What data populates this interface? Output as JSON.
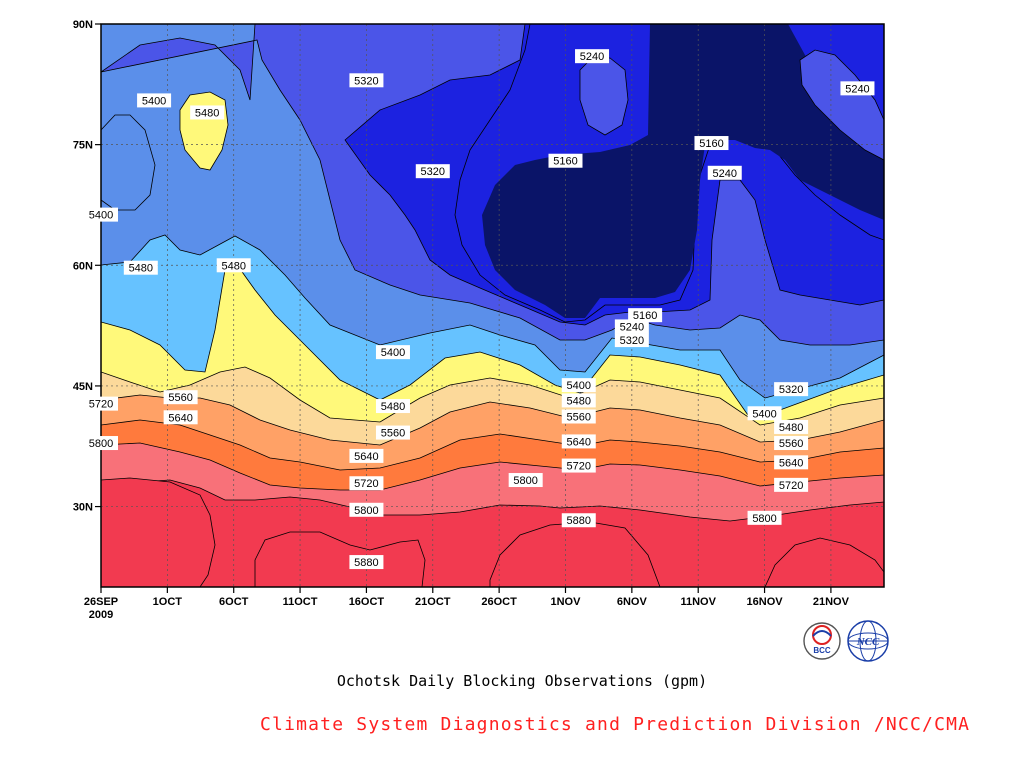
{
  "chart_data": {
    "type": "contour",
    "title": "Ochotsk Daily Blocking Observations (gpm)",
    "x_tick_labels": [
      "26SEP",
      "1OCT",
      "6OCT",
      "11OCT",
      "16OCT",
      "21OCT",
      "26OCT",
      "1NOV",
      "6NOV",
      "11NOV",
      "16NOV",
      "21NOV"
    ],
    "x_year_label": "2009",
    "x_range": [
      "2009-09-26",
      "2009-11-24"
    ],
    "y_tick_labels": [
      "30N",
      "45N",
      "60N",
      "75N",
      "90N"
    ],
    "ylim": [
      20,
      90
    ],
    "grid": true,
    "contour_levels": [
      5160,
      5240,
      5320,
      5400,
      5480,
      5560,
      5640,
      5720,
      5800,
      5880
    ],
    "contour_labels": [
      {
        "text": "5240",
        "date": "2009-11-02",
        "lat": 86
      },
      {
        "text": "5240",
        "date": "2009-11-22",
        "lat": 82
      },
      {
        "text": "5320",
        "date": "2009-10-16",
        "lat": 83
      },
      {
        "text": "5400",
        "date": "2009-09-30",
        "lat": 80.5
      },
      {
        "text": "5480",
        "date": "2009-10-04",
        "lat": 79
      },
      {
        "text": "5160",
        "date": "2009-10-31",
        "lat": 73
      },
      {
        "text": "5160",
        "date": "2009-11-11",
        "lat": 75.2
      },
      {
        "text": "5240",
        "date": "2009-11-12",
        "lat": 71.5
      },
      {
        "text": "5320",
        "date": "2009-10-21",
        "lat": 71.7
      },
      {
        "text": "5400",
        "date": "2009-09-26",
        "lat": 66.3
      },
      {
        "text": "5480",
        "date": "2009-09-29",
        "lat": 59.7
      },
      {
        "text": "5480",
        "date": "2009-10-06",
        "lat": 60
      },
      {
        "text": "5160",
        "date": "2009-11-06",
        "lat": 53.8
      },
      {
        "text": "5240",
        "date": "2009-11-05",
        "lat": 52.4
      },
      {
        "text": "5320",
        "date": "2009-11-05",
        "lat": 50.7
      },
      {
        "text": "5400",
        "date": "2009-10-18",
        "lat": 49.2
      },
      {
        "text": "5400",
        "date": "2009-11-01",
        "lat": 45.1
      },
      {
        "text": "5480",
        "date": "2009-11-01",
        "lat": 43.2
      },
      {
        "text": "5560",
        "date": "2009-11-01",
        "lat": 41.2
      },
      {
        "text": "5640",
        "date": "2009-11-01",
        "lat": 38.1
      },
      {
        "text": "5720",
        "date": "2009-11-01",
        "lat": 35.1
      },
      {
        "text": "5320",
        "date": "2009-11-17",
        "lat": 44.6
      },
      {
        "text": "5400",
        "date": "2009-11-15",
        "lat": 41.6
      },
      {
        "text": "5480",
        "date": "2009-11-17",
        "lat": 39.9
      },
      {
        "text": "5560",
        "date": "2009-11-17",
        "lat": 37.9
      },
      {
        "text": "5640",
        "date": "2009-11-17",
        "lat": 35.5
      },
      {
        "text": "5720",
        "date": "2009-11-17",
        "lat": 32.7
      },
      {
        "text": "5800",
        "date": "2009-11-15",
        "lat": 28.6
      },
      {
        "text": "5560",
        "date": "2009-10-02",
        "lat": 43.6
      },
      {
        "text": "5640",
        "date": "2009-10-02",
        "lat": 41.1
      },
      {
        "text": "5720",
        "date": "2009-09-26",
        "lat": 42.8
      },
      {
        "text": "5800",
        "date": "2009-09-26",
        "lat": 37.9
      },
      {
        "text": "5480",
        "date": "2009-10-18",
        "lat": 42.5
      },
      {
        "text": "5560",
        "date": "2009-10-18",
        "lat": 39.2
      },
      {
        "text": "5640",
        "date": "2009-10-16",
        "lat": 36.3
      },
      {
        "text": "5720",
        "date": "2009-10-16",
        "lat": 32.9
      },
      {
        "text": "5800",
        "date": "2009-10-16",
        "lat": 29.6
      },
      {
        "text": "5800",
        "date": "2009-10-28",
        "lat": 33.3
      },
      {
        "text": "5880",
        "date": "2009-11-01",
        "lat": 28.3
      },
      {
        "text": "5880",
        "date": "2009-10-16",
        "lat": 23.1
      }
    ],
    "colors": {
      "5160": "#0a1468",
      "5240": "#1c22e0",
      "5320": "#4b55e8",
      "5400": "#5b8fea",
      "5480": "#66c2ff",
      "5560": "#fff97a",
      "5640": "#fcd99a",
      "5720": "#ffa166",
      "5800": "#ff7a3d",
      "5880": "#f87179",
      "above": "#f23a50"
    }
  },
  "footer": {
    "subtitle": "Ochotsk Daily Blocking Observations (gpm)",
    "credit": "Climate System Diagnostics and Prediction Division /NCC/CMA",
    "logo_left_text": "BCC",
    "logo_right_text": "NCC"
  }
}
